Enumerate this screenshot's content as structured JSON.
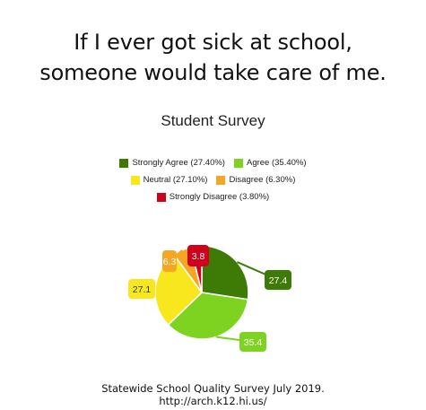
{
  "headline": {
    "line1": "If I ever got sick at school,",
    "line2": "someone would take care of me."
  },
  "footer": {
    "line1": "Statewide School Quality Survey July 2019.",
    "line2": "http://arch.k12.hi.us/"
  },
  "chart_data": {
    "type": "pie",
    "title": "Student Survey",
    "legend_position": "top",
    "categories": [
      "Strongly Agree",
      "Agree",
      "Neutral",
      "Disagree",
      "Strongly Disagree"
    ],
    "values": [
      27.4,
      35.4,
      27.1,
      6.3,
      3.8
    ],
    "legend_labels": [
      "Strongly Agree (27.40%)",
      "Agree (35.40%)",
      "Neutral (27.10%)",
      "Disagree (6.30%)",
      "Strongly Disagree (3.80%)"
    ],
    "data_labels": [
      "27.4",
      "35.4",
      "27.1",
      "6.3",
      "3.8"
    ],
    "colors": [
      "#3d7a06",
      "#7ed321",
      "#f8e71c",
      "#f5a623",
      "#d0021b"
    ]
  }
}
